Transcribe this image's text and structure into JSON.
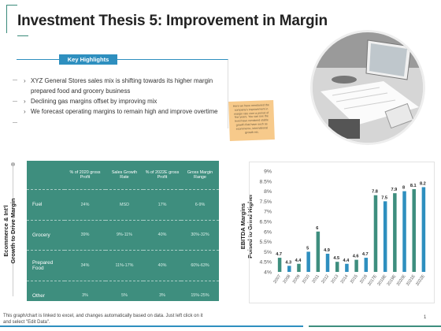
{
  "slide": {
    "title": "Investment Thesis 5: Improvement in Margin",
    "page_number": "1"
  },
  "highlights": {
    "badge": "Key Highlights",
    "bullets": [
      "XYZ General Stores sales mix is shifting towards its higher margin prepared food and grocery business",
      "Declining gas margins offset by improving mix",
      "We forecast operating margins to remain high and improve overtime"
    ]
  },
  "sticky_note": {
    "text": "Here we have mentioned the company's improvement in margin rate over a period of few years. You can see the level have remained stable growth that have such as ecommerce, international growth etc."
  },
  "table": {
    "side_label_line1": "Ecommerce & Int'l",
    "side_label_line2": "Growth to Drive Margin",
    "headers": [
      "",
      "% of 2020 gross Profit",
      "Sales Growth Rate",
      "% of 2022E gross Profit",
      "Gross Margin Range"
    ],
    "rows": [
      {
        "label": "Fuel",
        "cells": [
          "24%",
          "MSD",
          "17%",
          "6-9%"
        ]
      },
      {
        "label": "Grocery",
        "cells": [
          "39%",
          "9%-11%",
          "40%",
          "30%-32%"
        ]
      },
      {
        "label": "Prepared Food",
        "cells": [
          "34%",
          "11%-17%",
          "40%",
          "60%-63%"
        ]
      },
      {
        "label": "Other",
        "cells": [
          "3%",
          "5%",
          "3%",
          "15%-25%"
        ]
      }
    ]
  },
  "chart_side_label": {
    "line1": "EBITDA Margins",
    "line2": "Poised to Grind Higher"
  },
  "chart_data": {
    "type": "bar",
    "categories": [
      "2007",
      "2008",
      "2009",
      "2010",
      "2011",
      "2012",
      "2013",
      "2014",
      "2015",
      "2016",
      "2017E",
      "2018E",
      "2019E",
      "2020E",
      "2021E",
      "2022E"
    ],
    "values": [
      4.7,
      4.3,
      4.4,
      5.0,
      6.0,
      4.9,
      4.5,
      4.4,
      4.6,
      4.7,
      7.8,
      7.5,
      7.9,
      8.0,
      8.1,
      8.2
    ],
    "labels": [
      "4.7",
      "4.3",
      "4.4",
      "5",
      "6",
      "4.9",
      "4.5",
      "4.4",
      "4.6",
      "4.7",
      "7.8",
      "7.5",
      "7.9",
      "8",
      "8.1",
      "8.2"
    ],
    "yticks": [
      "4%",
      "4.5%",
      "5%",
      "5.5%",
      "6%",
      "6.5%",
      "7%",
      "7.5%",
      "8%",
      "8.5%",
      "9%"
    ],
    "ylim": [
      4,
      9
    ],
    "colors": {
      "bar": "#2e8fbf",
      "bar_alt": "#3e8e7e",
      "label": "#222222",
      "axis": "#555555"
    },
    "title": "",
    "xlabel": "",
    "ylabel": ""
  },
  "footer": {
    "line1": "This graph/chart is linked to excel, and changes automatically based on data. Just left click on it",
    "line2": "and select \"Edit Data\"."
  },
  "colors": {
    "accent_blue": "#2e8fbf",
    "accent_green": "#3e8e7e"
  }
}
